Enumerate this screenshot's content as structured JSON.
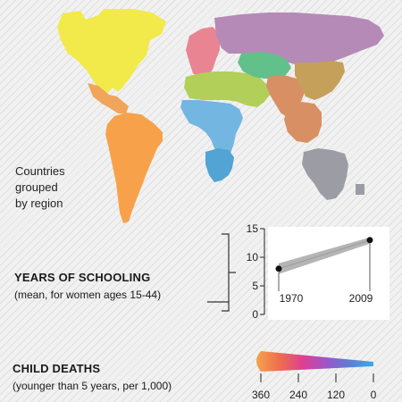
{
  "map": {
    "label_lines": [
      "Countries",
      "grouped",
      "by region"
    ],
    "regions": [
      {
        "name": "north-america",
        "color": "#f1ea4a"
      },
      {
        "name": "central-america",
        "color": "#f0a55a"
      },
      {
        "name": "south-america",
        "color": "#f7a24a"
      },
      {
        "name": "europe",
        "color": "#e98592"
      },
      {
        "name": "russia-central-asia",
        "color": "#b58ab7"
      },
      {
        "name": "middle-east-north-africa",
        "color": "#b2cf5a"
      },
      {
        "name": "south-asia",
        "color": "#d88f63"
      },
      {
        "name": "east-asia",
        "color": "#c4a05a"
      },
      {
        "name": "central-asia",
        "color": "#62c08a"
      },
      {
        "name": "sub-saharan-africa",
        "color": "#73b6e2"
      },
      {
        "name": "southern-africa",
        "color": "#52a4d4"
      },
      {
        "name": "oceania",
        "color": "#9c9ca4"
      }
    ]
  },
  "schooling": {
    "title": "YEARS OF SCHOOLING",
    "subtitle": "(mean, for women ages 15-44)",
    "chart_data": {
      "type": "line",
      "title": "",
      "x": [
        1970,
        2009
      ],
      "y": [
        8,
        13
      ],
      "ylim": [
        0,
        15
      ],
      "y_ticks": [
        0,
        5,
        10,
        15
      ],
      "x_labels": [
        "1970",
        "2009"
      ],
      "band_color": "#b5b5b5",
      "point_color": "#111111",
      "grid": false
    }
  },
  "child_deaths": {
    "title": "CHILD DEATHS",
    "subtitle": "(younger than 5 years, per 1,000)",
    "chart_data": {
      "type": "area",
      "title": "",
      "ticks": [
        360,
        240,
        120,
        0
      ],
      "range": [
        360,
        0
      ],
      "colors": [
        "#f4a24d",
        "#ee6d4e",
        "#dd3f93",
        "#9d55c9",
        "#5c7fd6",
        "#3fa8e0"
      ]
    }
  }
}
